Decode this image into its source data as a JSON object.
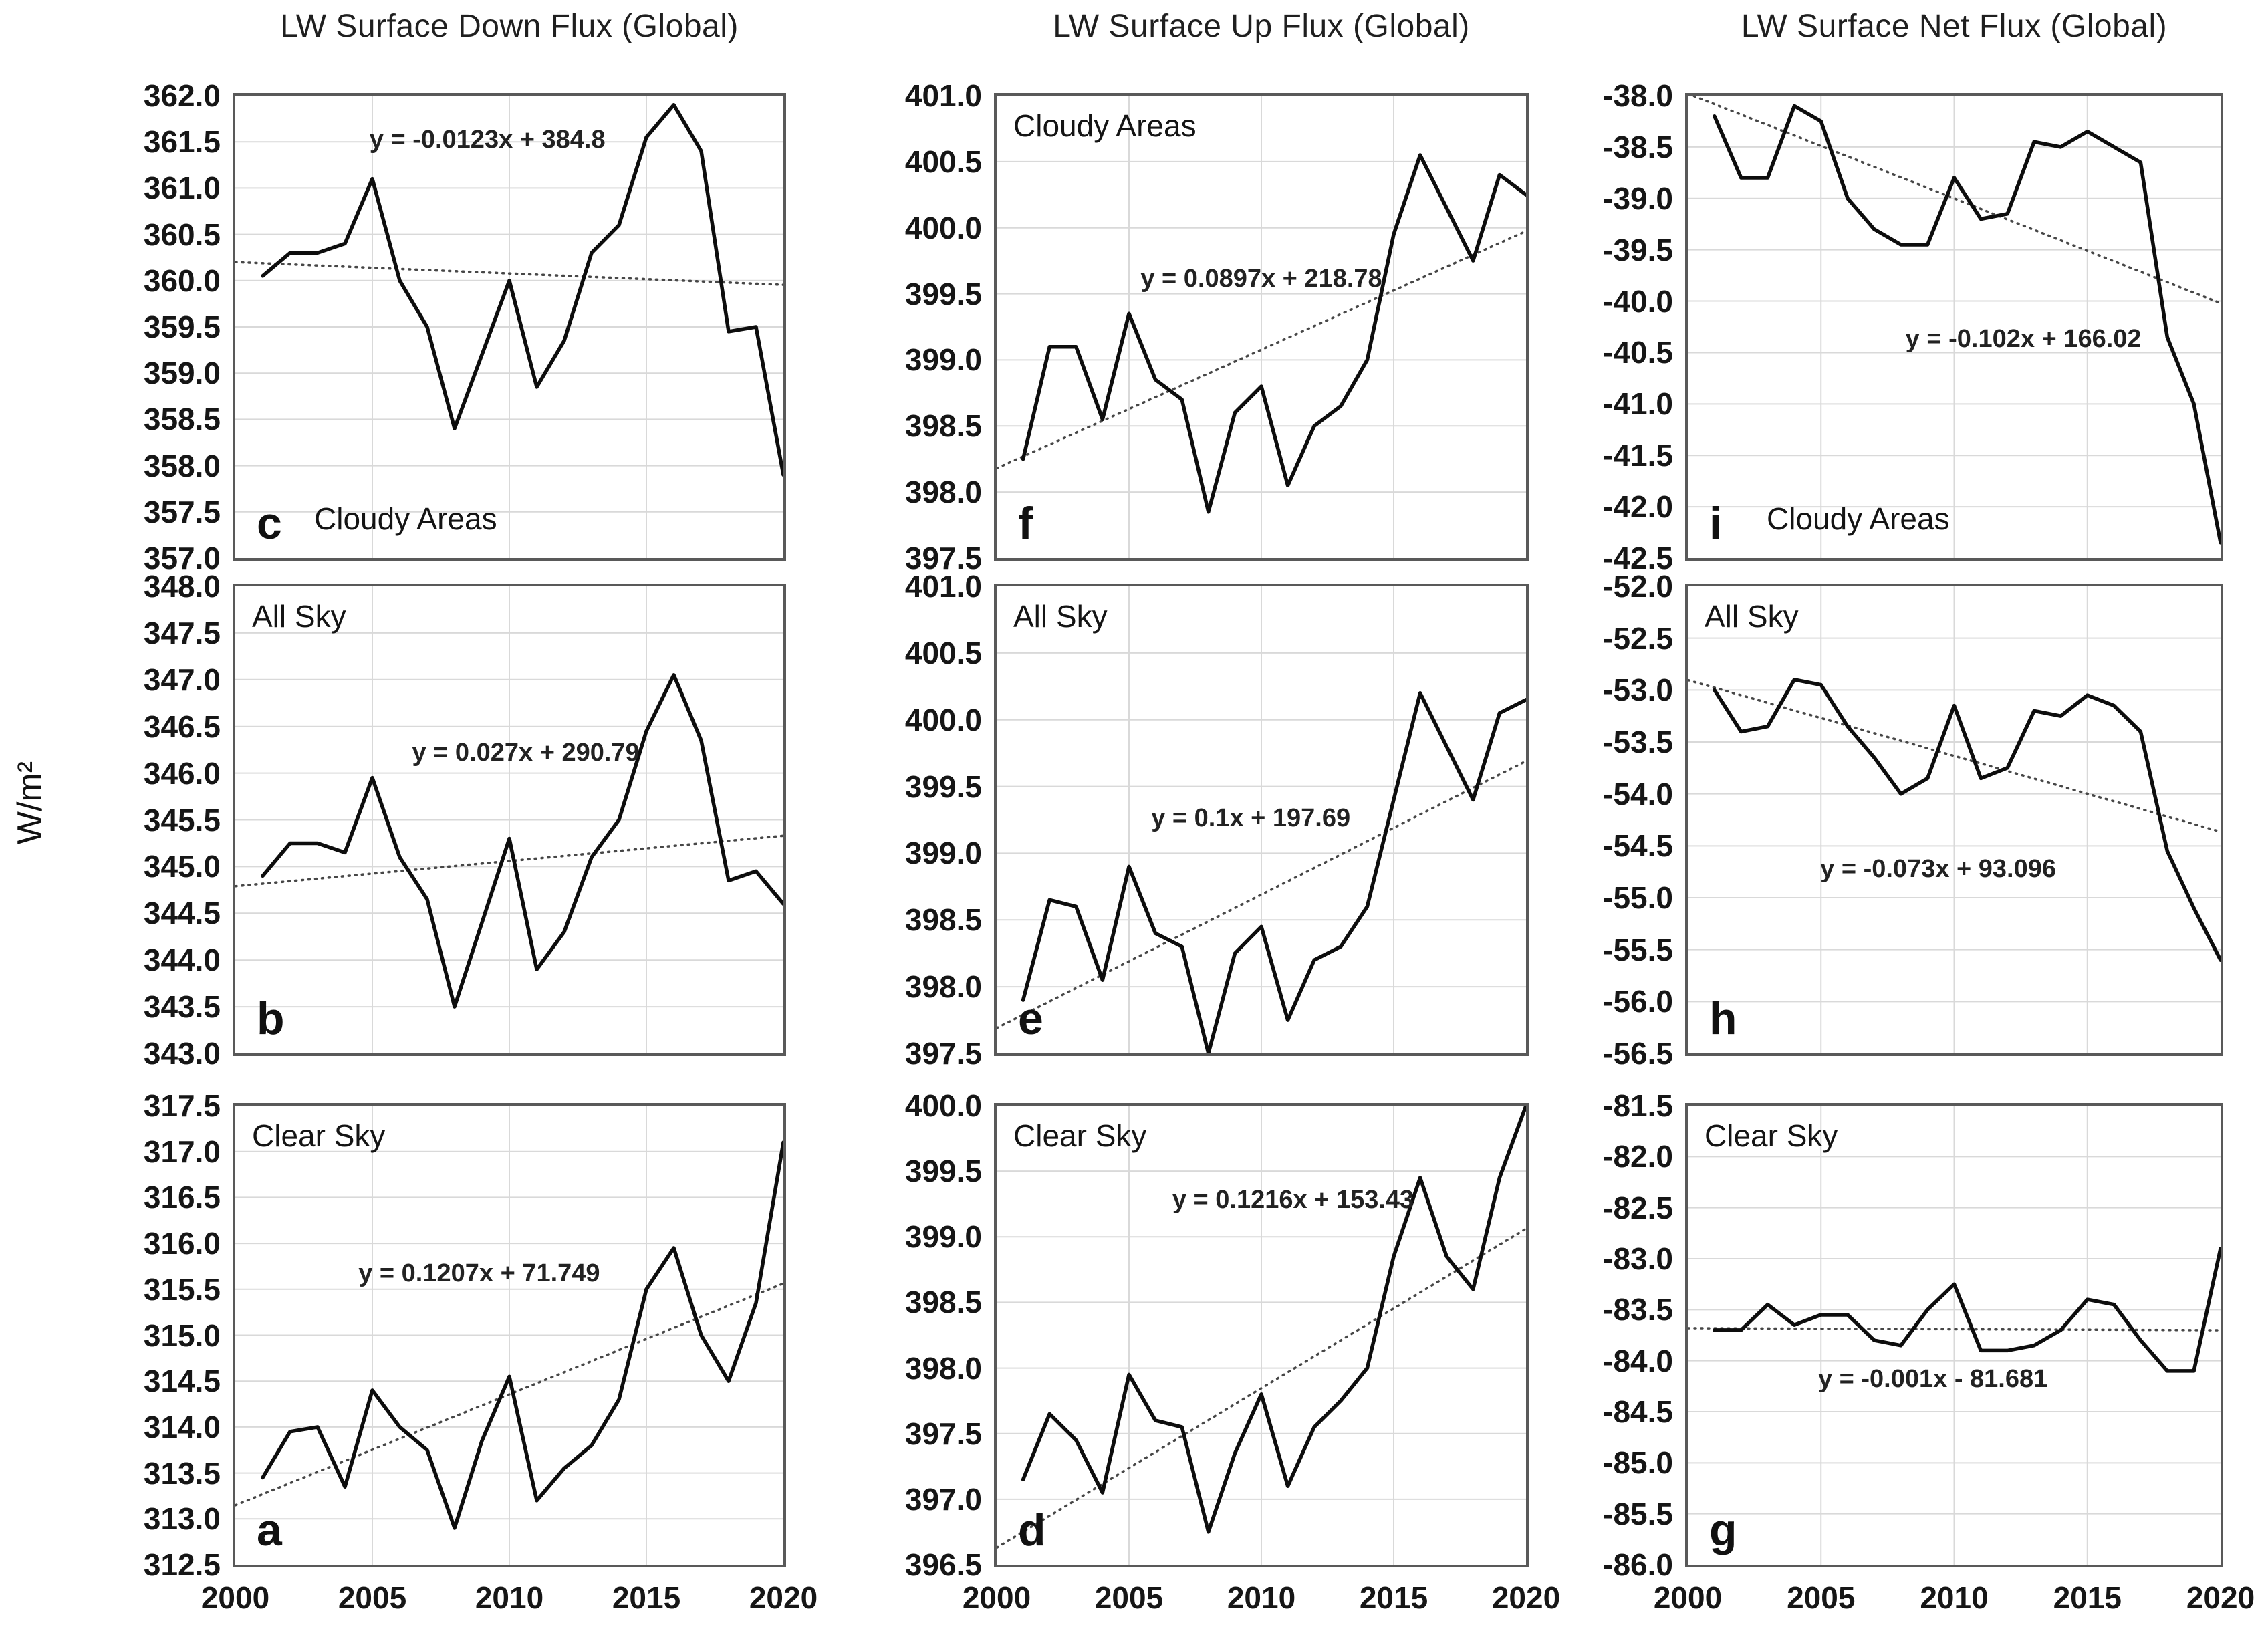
{
  "page": {
    "y_axis_label": "W/m²"
  },
  "columns": [
    {
      "title": "LW Surface Down Flux (Global)"
    },
    {
      "title": "LW Surface Up Flux (Global)"
    },
    {
      "title": "LW Surface Net Flux (Global)"
    }
  ],
  "chart_data": [
    {
      "type": "line",
      "panel_letter": "c",
      "row": 0,
      "col": 0,
      "title": "LW Surface Down Flux (Global)",
      "series_label": "Cloudy Areas",
      "series_label_pos": "bottom-left",
      "trend_equation": "y = -0.0123x + 384.8",
      "trend": {
        "slope": -0.0123,
        "intercept": 384.8
      },
      "equation_pos": {
        "x": 0.46,
        "y": 0.1
      },
      "xlim": [
        2000,
        2020
      ],
      "ylim": [
        357.0,
        362.0
      ],
      "ytick_step": 0.5,
      "xticks": [
        2000,
        2005,
        2010,
        2015,
        2020
      ],
      "x_gridlines": [
        2005,
        2010,
        2015
      ],
      "show_x_labels": false,
      "x": [
        2001,
        2002,
        2003,
        2004,
        2005,
        2006,
        2007,
        2008,
        2009,
        2010,
        2011,
        2012,
        2013,
        2014,
        2015,
        2016,
        2017,
        2018,
        2019,
        2020
      ],
      "values": [
        360.05,
        360.3,
        360.3,
        360.4,
        361.1,
        360.0,
        359.5,
        358.4,
        359.2,
        360.0,
        358.85,
        359.35,
        360.3,
        360.6,
        361.55,
        361.9,
        361.4,
        359.45,
        359.5,
        357.9
      ]
    },
    {
      "type": "line",
      "panel_letter": "f",
      "row": 0,
      "col": 1,
      "title": "LW Surface Up Flux (Global)",
      "series_label": "Cloudy Areas",
      "series_label_pos": "top-left",
      "trend_equation": "y = 0.0897x + 218.78",
      "trend": {
        "slope": 0.0897,
        "intercept": 218.78
      },
      "equation_pos": {
        "x": 0.5,
        "y": 0.4
      },
      "xlim": [
        2000,
        2020
      ],
      "ylim": [
        397.5,
        401.0
      ],
      "ytick_step": 0.5,
      "xticks": [
        2000,
        2005,
        2010,
        2015,
        2020
      ],
      "x_gridlines": [
        2005,
        2010,
        2015
      ],
      "show_x_labels": false,
      "x": [
        2001,
        2002,
        2003,
        2004,
        2005,
        2006,
        2007,
        2008,
        2009,
        2010,
        2011,
        2012,
        2013,
        2014,
        2015,
        2016,
        2017,
        2018,
        2019,
        2020
      ],
      "values": [
        398.25,
        399.1,
        399.1,
        398.55,
        399.35,
        398.85,
        398.7,
        397.85,
        398.6,
        398.8,
        398.05,
        398.5,
        398.65,
        399.0,
        399.95,
        400.55,
        400.15,
        399.75,
        400.4,
        400.25
      ]
    },
    {
      "type": "line",
      "panel_letter": "i",
      "row": 0,
      "col": 2,
      "title": "LW Surface Net Flux (Global)",
      "series_label": "Cloudy Areas",
      "series_label_pos": "bottom-left",
      "trend_equation": "y = -0.102x + 166.02",
      "trend": {
        "slope": -0.102,
        "intercept": 166.02
      },
      "equation_pos": {
        "x": 0.63,
        "y": 0.53
      },
      "xlim": [
        2000,
        2020
      ],
      "ylim": [
        -42.5,
        -38.0
      ],
      "ytick_step": 0.5,
      "xticks": [
        2000,
        2005,
        2010,
        2015,
        2020
      ],
      "x_gridlines": [
        2005,
        2010,
        2015
      ],
      "show_x_labels": false,
      "x": [
        2001,
        2002,
        2003,
        2004,
        2005,
        2006,
        2007,
        2008,
        2009,
        2010,
        2011,
        2012,
        2013,
        2014,
        2015,
        2016,
        2017,
        2018,
        2019,
        2020
      ],
      "values": [
        -38.2,
        -38.8,
        -38.8,
        -38.1,
        -38.25,
        -39.0,
        -39.3,
        -39.45,
        -39.45,
        -38.8,
        -39.2,
        -39.15,
        -38.45,
        -38.5,
        -38.35,
        -38.5,
        -38.65,
        -40.35,
        -41.0,
        -42.35
      ]
    },
    {
      "type": "line",
      "panel_letter": "b",
      "row": 1,
      "col": 0,
      "title": "LW Surface Down Flux (Global)",
      "series_label": "All Sky",
      "series_label_pos": "top-left",
      "trend_equation": "y = 0.027x + 290.79",
      "trend": {
        "slope": 0.027,
        "intercept": 290.79
      },
      "equation_pos": {
        "x": 0.53,
        "y": 0.36
      },
      "xlim": [
        2000,
        2020
      ],
      "ylim": [
        343.0,
        348.0
      ],
      "ytick_step": 0.5,
      "xticks": [
        2000,
        2005,
        2010,
        2015,
        2020
      ],
      "x_gridlines": [
        2005,
        2010,
        2015
      ],
      "show_x_labels": false,
      "x": [
        2001,
        2002,
        2003,
        2004,
        2005,
        2006,
        2007,
        2008,
        2009,
        2010,
        2011,
        2012,
        2013,
        2014,
        2015,
        2016,
        2017,
        2018,
        2019,
        2020
      ],
      "values": [
        344.9,
        345.25,
        345.25,
        345.15,
        345.95,
        345.1,
        344.65,
        343.5,
        344.4,
        345.3,
        343.9,
        344.3,
        345.1,
        345.5,
        346.45,
        347.05,
        346.35,
        344.85,
        344.95,
        344.6
      ]
    },
    {
      "type": "line",
      "panel_letter": "e",
      "row": 1,
      "col": 1,
      "title": "LW Surface Up Flux (Global)",
      "series_label": "All Sky",
      "series_label_pos": "top-left",
      "trend_equation": "y = 0.1x + 197.69",
      "trend": {
        "slope": 0.1,
        "intercept": 197.69
      },
      "equation_pos": {
        "x": 0.48,
        "y": 0.5
      },
      "xlim": [
        2000,
        2020
      ],
      "ylim": [
        397.5,
        401.0
      ],
      "ytick_step": 0.5,
      "xticks": [
        2000,
        2005,
        2010,
        2015,
        2020
      ],
      "x_gridlines": [
        2005,
        2010,
        2015
      ],
      "show_x_labels": false,
      "x": [
        2001,
        2002,
        2003,
        2004,
        2005,
        2006,
        2007,
        2008,
        2009,
        2010,
        2011,
        2012,
        2013,
        2014,
        2015,
        2016,
        2017,
        2018,
        2019,
        2020
      ],
      "values": [
        397.9,
        398.65,
        398.6,
        398.05,
        398.9,
        398.4,
        398.3,
        397.5,
        398.25,
        398.45,
        397.75,
        398.2,
        398.3,
        398.6,
        399.4,
        400.2,
        399.8,
        399.4,
        400.05,
        400.15
      ]
    },
    {
      "type": "line",
      "panel_letter": "h",
      "row": 1,
      "col": 2,
      "title": "LW Surface Net Flux (Global)",
      "series_label": "All Sky",
      "series_label_pos": "top-left",
      "trend_equation": "y = -0.073x + 93.096",
      "trend": {
        "slope": -0.073,
        "intercept": 93.096
      },
      "equation_pos": {
        "x": 0.47,
        "y": 0.61
      },
      "xlim": [
        2000,
        2020
      ],
      "ylim": [
        -56.5,
        -52.0
      ],
      "ytick_step": 0.5,
      "xticks": [
        2000,
        2005,
        2010,
        2015,
        2020
      ],
      "x_gridlines": [
        2005,
        2010,
        2015
      ],
      "show_x_labels": false,
      "x": [
        2001,
        2002,
        2003,
        2004,
        2005,
        2006,
        2007,
        2008,
        2009,
        2010,
        2011,
        2012,
        2013,
        2014,
        2015,
        2016,
        2017,
        2018,
        2019,
        2020
      ],
      "values": [
        -53.0,
        -53.4,
        -53.35,
        -52.9,
        -52.95,
        -53.35,
        -53.65,
        -54.0,
        -53.85,
        -53.15,
        -53.85,
        -53.75,
        -53.2,
        -53.25,
        -53.05,
        -53.15,
        -53.4,
        -54.55,
        -55.1,
        -55.6
      ]
    },
    {
      "type": "line",
      "panel_letter": "a",
      "row": 2,
      "col": 0,
      "title": "LW Surface Down Flux (Global)",
      "series_label": "Clear Sky",
      "series_label_pos": "top-left",
      "trend_equation": "y = 0.1207x + 71.749",
      "trend": {
        "slope": 0.1207,
        "intercept": 71.749
      },
      "equation_pos": {
        "x": 0.445,
        "y": 0.37
      },
      "xlim": [
        2000,
        2020
      ],
      "ylim": [
        312.5,
        317.5
      ],
      "ytick_step": 0.5,
      "xticks": [
        2000,
        2005,
        2010,
        2015,
        2020
      ],
      "x_gridlines": [
        2005,
        2010,
        2015
      ],
      "show_x_labels": true,
      "x": [
        2001,
        2002,
        2003,
        2004,
        2005,
        2006,
        2007,
        2008,
        2009,
        2010,
        2011,
        2012,
        2013,
        2014,
        2015,
        2016,
        2017,
        2018,
        2019,
        2020
      ],
      "values": [
        313.45,
        313.95,
        314.0,
        313.35,
        314.4,
        314.0,
        313.75,
        312.9,
        313.85,
        314.55,
        313.2,
        313.55,
        313.8,
        314.3,
        315.5,
        315.95,
        315.0,
        314.5,
        315.35,
        317.1
      ]
    },
    {
      "type": "line",
      "panel_letter": "d",
      "row": 2,
      "col": 1,
      "title": "LW Surface Up Flux (Global)",
      "series_label": "Clear Sky",
      "series_label_pos": "top-left",
      "trend_equation": "y = 0.1216x + 153.43",
      "trend": {
        "slope": 0.1216,
        "intercept": 153.43
      },
      "equation_pos": {
        "x": 0.56,
        "y": 0.21
      },
      "xlim": [
        2000,
        2020
      ],
      "ylim": [
        396.5,
        400.0
      ],
      "ytick_step": 0.5,
      "xticks": [
        2000,
        2005,
        2010,
        2015,
        2020
      ],
      "x_gridlines": [
        2005,
        2010,
        2015
      ],
      "show_x_labels": true,
      "x": [
        2001,
        2002,
        2003,
        2004,
        2005,
        2006,
        2007,
        2008,
        2009,
        2010,
        2011,
        2012,
        2013,
        2014,
        2015,
        2016,
        2017,
        2018,
        2019,
        2020
      ],
      "values": [
        397.15,
        397.65,
        397.45,
        397.05,
        397.95,
        397.6,
        397.55,
        396.75,
        397.35,
        397.8,
        397.1,
        397.55,
        397.75,
        398.0,
        398.85,
        399.45,
        398.85,
        398.6,
        399.45,
        400.0
      ]
    },
    {
      "type": "line",
      "panel_letter": "g",
      "row": 2,
      "col": 2,
      "title": "LW Surface Net Flux (Global)",
      "series_label": "Clear Sky",
      "series_label_pos": "top-left",
      "trend_equation": "y = -0.001x - 81.681",
      "trend": {
        "slope": -0.001,
        "intercept": -81.681
      },
      "equation_pos": {
        "x": 0.46,
        "y": 0.6
      },
      "xlim": [
        2000,
        2020
      ],
      "ylim": [
        -86.0,
        -81.5
      ],
      "ytick_step": 0.5,
      "xticks": [
        2000,
        2005,
        2010,
        2015,
        2020
      ],
      "x_gridlines": [
        2005,
        2010,
        2015
      ],
      "show_x_labels": true,
      "x": [
        2001,
        2002,
        2003,
        2004,
        2005,
        2006,
        2007,
        2008,
        2009,
        2010,
        2011,
        2012,
        2013,
        2014,
        2015,
        2016,
        2017,
        2018,
        2019,
        2020
      ],
      "values": [
        -83.7,
        -83.7,
        -83.45,
        -83.65,
        -83.55,
        -83.55,
        -83.8,
        -83.85,
        -83.5,
        -83.25,
        -83.9,
        -83.9,
        -83.85,
        -83.7,
        -83.4,
        -83.45,
        -83.8,
        -84.1,
        -84.1,
        -82.9
      ]
    }
  ]
}
